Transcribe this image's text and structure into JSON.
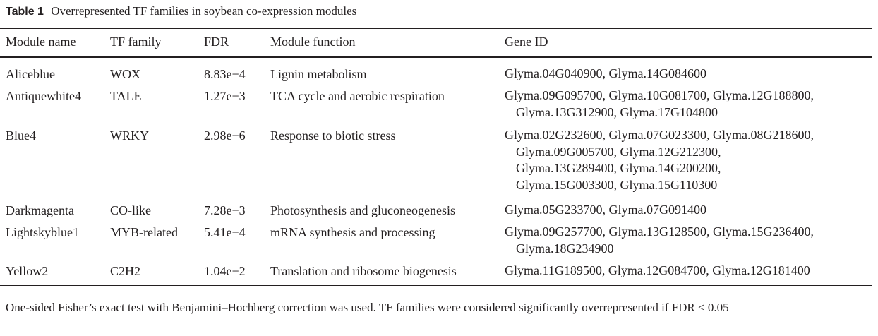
{
  "table": {
    "label": "Table 1",
    "caption": "Overrepresented TF families in soybean co-expression modules",
    "headers": [
      "Module name",
      "TF family",
      "FDR",
      "Module function",
      "Gene ID"
    ],
    "rows": [
      {
        "module": "Aliceblue",
        "tf_family": "WOX",
        "fdr": "8.83e−4",
        "function": "Lignin metabolism",
        "gene_lines": [
          "Glyma.04G040900, Glyma.14G084600"
        ]
      },
      {
        "module": "Antiquewhite4",
        "tf_family": "TALE",
        "fdr": "1.27e−3",
        "function": "TCA cycle and aerobic respiration",
        "gene_lines": [
          "Glyma.09G095700, Glyma.10G081700, Glyma.12G188800,",
          "Glyma.13G312900, Glyma.17G104800"
        ]
      },
      {
        "module": "Blue4",
        "tf_family": "WRKY",
        "fdr": "2.98e−6",
        "function": "Response to biotic stress",
        "gene_lines": [
          "Glyma.02G232600, Glyma.07G023300, Glyma.08G218600,",
          "Glyma.09G005700, Glyma.12G212300,",
          "Glyma.13G289400, Glyma.14G200200,",
          "Glyma.15G003300, Glyma.15G110300"
        ]
      },
      {
        "module": "Darkmagenta",
        "tf_family": "CO-like",
        "fdr": "7.28e−3",
        "function": "Photosynthesis and gluconeogenesis",
        "gene_lines": [
          "Glyma.05G233700, Glyma.07G091400"
        ]
      },
      {
        "module": "Lightskyblue1",
        "tf_family": "MYB-related",
        "fdr": "5.41e−4",
        "function": "mRNA synthesis and processing",
        "gene_lines": [
          "Glyma.09G257700, Glyma.13G128500, Glyma.15G236400,",
          "Glyma.18G234900"
        ]
      },
      {
        "module": "Yellow2",
        "tf_family": "C2H2",
        "fdr": "1.04e−2",
        "function": "Translation and ribosome biogenesis",
        "gene_lines": [
          "Glyma.11G189500, Glyma.12G084700, Glyma.12G181400"
        ]
      }
    ],
    "footnote": "One-sided Fisher’s exact test with Benjamini–Hochberg correction was used. TF families were considered significantly overrepresented if FDR < 0.05"
  }
}
